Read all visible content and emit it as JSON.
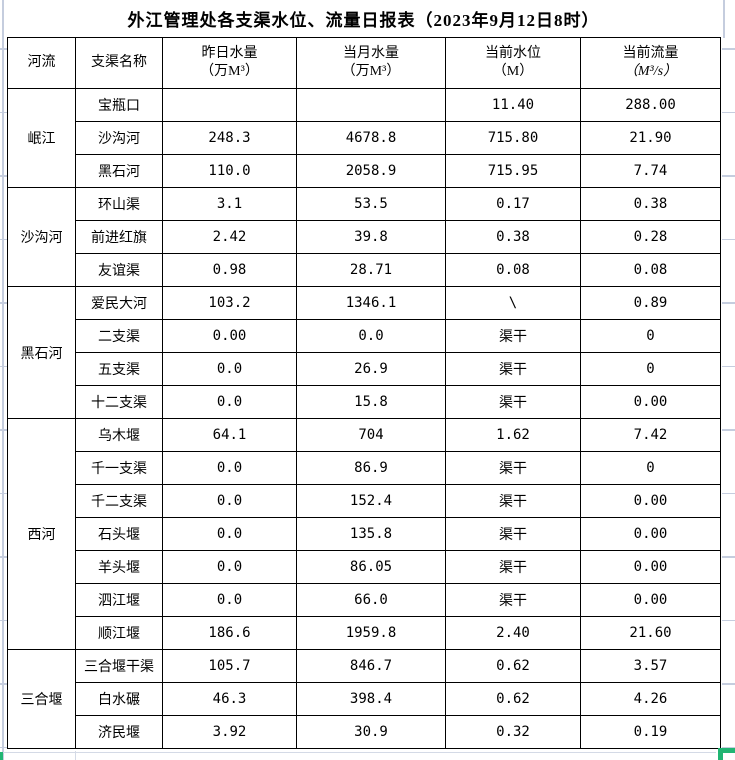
{
  "title": "外江管理处各支渠水位、流量日报表（2023年9月12日8时）",
  "table": {
    "headers": {
      "river": "河流",
      "channel": "支渠名称",
      "yesterday_l1": "昨日水量",
      "yesterday_l2": "（万M³）",
      "month_l1": "当月水量",
      "month_l2": "（万M³）",
      "level_l1": "当前水位",
      "level_l2": "（M）",
      "flow_l1": "当前流量",
      "flow_l2": "（M³/s）"
    },
    "groups": [
      {
        "river": "岷江",
        "rows": [
          {
            "channel": "宝瓶口",
            "yesterday": "",
            "month": "",
            "level": "11.40",
            "flow": "288.00"
          },
          {
            "channel": "沙沟河",
            "yesterday": "248.3",
            "month": "4678.8",
            "level": "715.80",
            "flow": "21.90"
          },
          {
            "channel": "黑石河",
            "yesterday": "110.0",
            "month": "2058.9",
            "level": "715.95",
            "flow": "7.74"
          }
        ]
      },
      {
        "river": "沙沟河",
        "rows": [
          {
            "channel": "环山渠",
            "yesterday": "3.1",
            "month": "53.5",
            "level": "0.17",
            "flow": "0.38"
          },
          {
            "channel": "前进红旗",
            "yesterday": "2.42",
            "month": "39.8",
            "level": "0.38",
            "flow": "0.28"
          },
          {
            "channel": "友谊渠",
            "yesterday": "0.98",
            "month": "28.71",
            "level": "0.08",
            "flow": "0.08"
          }
        ]
      },
      {
        "river": "黑石河",
        "rows": [
          {
            "channel": "爱民大河",
            "yesterday": "103.2",
            "month": "1346.1",
            "level": "\\",
            "flow": "0.89"
          },
          {
            "channel": "二支渠",
            "yesterday": "0.00",
            "month": "0.0",
            "level": "渠干",
            "flow": "0"
          },
          {
            "channel": "五支渠",
            "yesterday": "0.0",
            "month": "26.9",
            "level": "渠干",
            "flow": "0"
          },
          {
            "channel": "十二支渠",
            "yesterday": "0.0",
            "month": "15.8",
            "level": "渠干",
            "flow": "0.00"
          }
        ]
      },
      {
        "river": "西河",
        "rows": [
          {
            "channel": "乌木堰",
            "yesterday": "64.1",
            "month": "704",
            "level": "1.62",
            "flow": "7.42"
          },
          {
            "channel": "千一支渠",
            "yesterday": "0.0",
            "month": "86.9",
            "level": "渠干",
            "flow": "0"
          },
          {
            "channel": "千二支渠",
            "yesterday": "0.0",
            "month": "152.4",
            "level": "渠干",
            "flow": "0.00"
          },
          {
            "channel": "石头堰",
            "yesterday": "0.0",
            "month": "135.8",
            "level": "渠干",
            "flow": "0.00"
          },
          {
            "channel": "羊头堰",
            "yesterday": "0.0",
            "month": "86.05",
            "level": "渠干",
            "flow": "0.00"
          },
          {
            "channel": "泗江堰",
            "yesterday": "0.0",
            "month": "66.0",
            "level": "渠干",
            "flow": "0.00"
          },
          {
            "channel": "顺江堰",
            "yesterday": "186.6",
            "month": "1959.8",
            "level": "2.40",
            "flow": "21.60"
          }
        ]
      },
      {
        "river": "三合堰",
        "rows": [
          {
            "channel": "三合堰干渠",
            "yesterday": "105.7",
            "month": "846.7",
            "level": "0.62",
            "flow": "3.57"
          },
          {
            "channel": "白水碾",
            "yesterday": "46.3",
            "month": "398.4",
            "level": "0.62",
            "flow": "4.26"
          },
          {
            "channel": "济民堰",
            "yesterday": "3.92",
            "month": "30.9",
            "level": "0.32",
            "flow": "0.19"
          }
        ]
      }
    ]
  },
  "colors": {
    "table_border": "#000000",
    "sheet_gridline": "#c5cdde",
    "selection_green": "#21b573",
    "background": "#ffffff"
  }
}
